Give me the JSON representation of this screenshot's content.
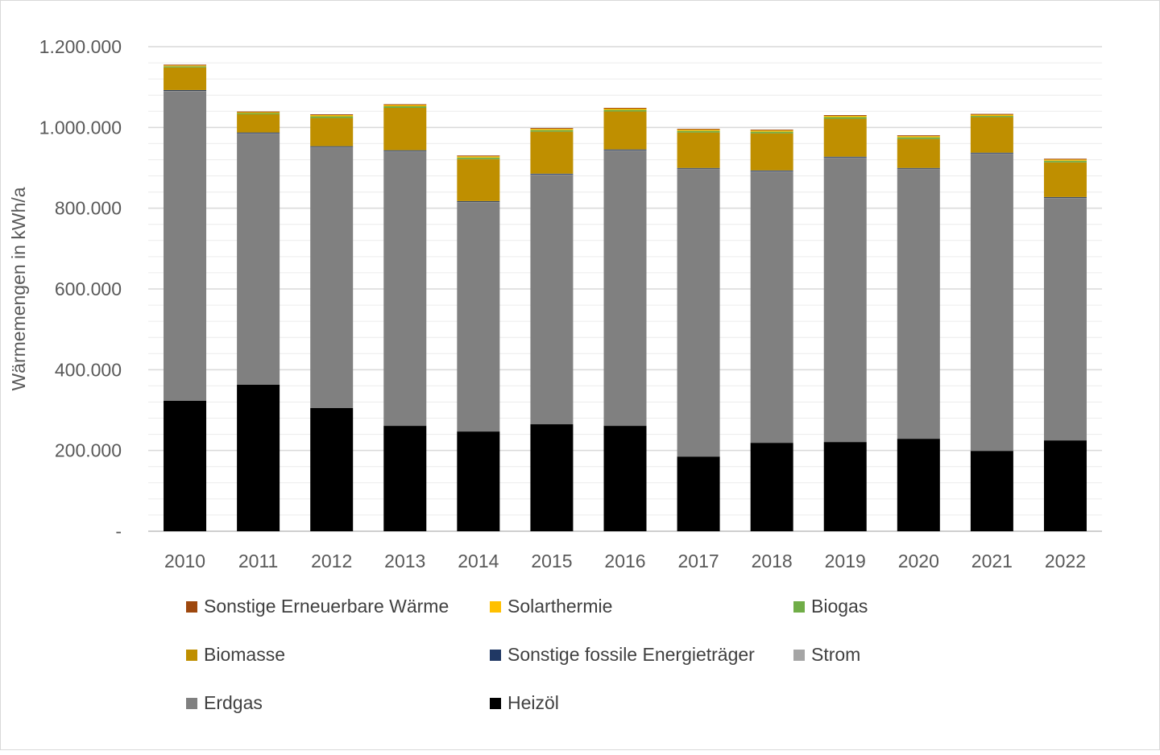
{
  "chart_data": {
    "type": "bar",
    "stacked": true,
    "title": "",
    "xlabel": "",
    "ylabel": "Wärmemengen in kWh/a",
    "ylim": [
      0,
      1200000
    ],
    "yticks": [
      {
        "value": 0,
        "label": "-"
      },
      {
        "value": 200000,
        "label": "200.000"
      },
      {
        "value": 400000,
        "label": "400.000"
      },
      {
        "value": 600000,
        "label": "600.000"
      },
      {
        "value": 800000,
        "label": "800.000"
      },
      {
        "value": 1000000,
        "label": "1.000.000"
      },
      {
        "value": 1200000,
        "label": "1.200.000"
      }
    ],
    "grid": true,
    "legend_position": "bottom",
    "categories": [
      "2010",
      "2011",
      "2012",
      "2013",
      "2014",
      "2015",
      "2016",
      "2017",
      "2018",
      "2019",
      "2020",
      "2021",
      "2022"
    ],
    "series": [
      {
        "name": "Heizöl",
        "color": "#000000",
        "values": [
          323000,
          363000,
          305000,
          261000,
          247000,
          265000,
          261000,
          185000,
          219000,
          221000,
          229000,
          199000,
          225000
        ]
      },
      {
        "name": "Erdgas",
        "color": "#808080",
        "values": [
          767000,
          622000,
          646000,
          680000,
          568000,
          618000,
          682000,
          712000,
          672000,
          704000,
          668000,
          736000,
          600000
        ]
      },
      {
        "name": "Strom",
        "color": "#a5a5a5",
        "values": [
          500,
          500,
          500,
          500,
          500,
          500,
          500,
          500,
          500,
          500,
          500,
          500,
          500
        ]
      },
      {
        "name": "Sonstige fossile Energieträger",
        "color": "#203864",
        "values": [
          2000,
          2000,
          2000,
          2000,
          2000,
          2000,
          2000,
          2000,
          2000,
          2000,
          2000,
          2000,
          2000
        ]
      },
      {
        "name": "Biomasse",
        "color": "#bf8f00",
        "values": [
          56000,
          45000,
          70000,
          105000,
          104000,
          104000,
          94000,
          88000,
          92000,
          94000,
          72000,
          88000,
          86000
        ]
      },
      {
        "name": "Biogas",
        "color": "#70ad47",
        "values": [
          3000,
          3000,
          4000,
          4000,
          4000,
          4000,
          4000,
          4000,
          4000,
          4000,
          4000,
          3000,
          4000
        ]
      },
      {
        "name": "Solarthermie",
        "color": "#ffc000",
        "values": [
          2000,
          2000,
          3000,
          3000,
          3000,
          3000,
          3000,
          3000,
          3000,
          3000,
          3000,
          3000,
          3000
        ]
      },
      {
        "name": "Sonstige Erneuerbare Wärme",
        "color": "#9e480e",
        "values": [
          2000,
          2000,
          2000,
          2000,
          2000,
          2000,
          2000,
          2000,
          2000,
          2000,
          2000,
          2000,
          2000
        ]
      }
    ],
    "legend_order": [
      "Sonstige Erneuerbare Wärme",
      "Solarthermie",
      "Biogas",
      "Biomasse",
      "Sonstige fossile Energieträger",
      "Strom",
      "Erdgas",
      "Heizöl"
    ]
  }
}
